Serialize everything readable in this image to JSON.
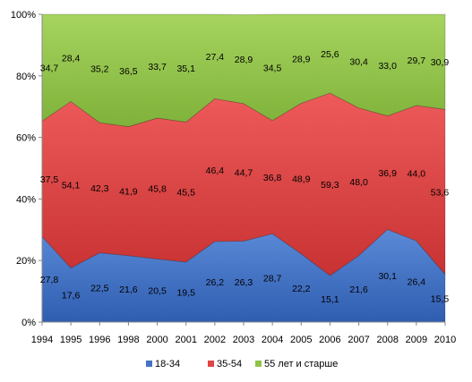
{
  "chart_data": {
    "type": "area",
    "stacked": "percent",
    "x": [
      "1994",
      "1995",
      "1996",
      "1998",
      "2000",
      "2001",
      "2002",
      "2003",
      "2004",
      "2005",
      "2006",
      "2007",
      "2008",
      "2009",
      "2010"
    ],
    "series": [
      {
        "name": "18-34",
        "color": "#4472c4",
        "values": [
          27.8,
          17.6,
          22.5,
          21.6,
          20.5,
          19.5,
          26.2,
          26.3,
          28.7,
          22.2,
          15.1,
          21.6,
          30.1,
          26.4,
          15.5
        ],
        "labels": [
          "27,8",
          "17,6",
          "22,5",
          "21,6",
          "20,5",
          "19,5",
          "26,2",
          "26,3",
          "28,7",
          "22,2",
          "15,1",
          "21,6",
          "30,1",
          "26,4",
          "15,5"
        ]
      },
      {
        "name": "35-54",
        "color": "#e04444",
        "values": [
          37.5,
          54.1,
          42.3,
          41.9,
          45.8,
          45.5,
          46.4,
          44.7,
          36.8,
          48.9,
          59.3,
          48.0,
          36.9,
          44.0,
          53.6
        ],
        "labels": [
          "37,5",
          "54,1",
          "42,3",
          "41,9",
          "45,8",
          "45,5",
          "46,4",
          "44,7",
          "36,8",
          "48,9",
          "59,3",
          "48,0",
          "36,9",
          "44,0",
          "53,6"
        ]
      },
      {
        "name": "55 лет и старше",
        "color": "#90c24a",
        "values": [
          34.7,
          28.4,
          35.2,
          36.5,
          33.7,
          35.1,
          27.4,
          28.9,
          34.5,
          28.9,
          25.6,
          30.4,
          33.0,
          29.7,
          30.9
        ],
        "labels": [
          "34,7",
          "28,4",
          "35,2",
          "36,5",
          "33,7",
          "35,1",
          "27,4",
          "28,9",
          "34,5",
          "28,9",
          "25,6",
          "30,4",
          "33,0",
          "29,7",
          "30,9"
        ]
      }
    ],
    "y_ticks": [
      "0%",
      "20%",
      "40%",
      "60%",
      "80%",
      "100%"
    ],
    "ylim": [
      0,
      100
    ],
    "legend_position": "bottom",
    "grid": false
  }
}
